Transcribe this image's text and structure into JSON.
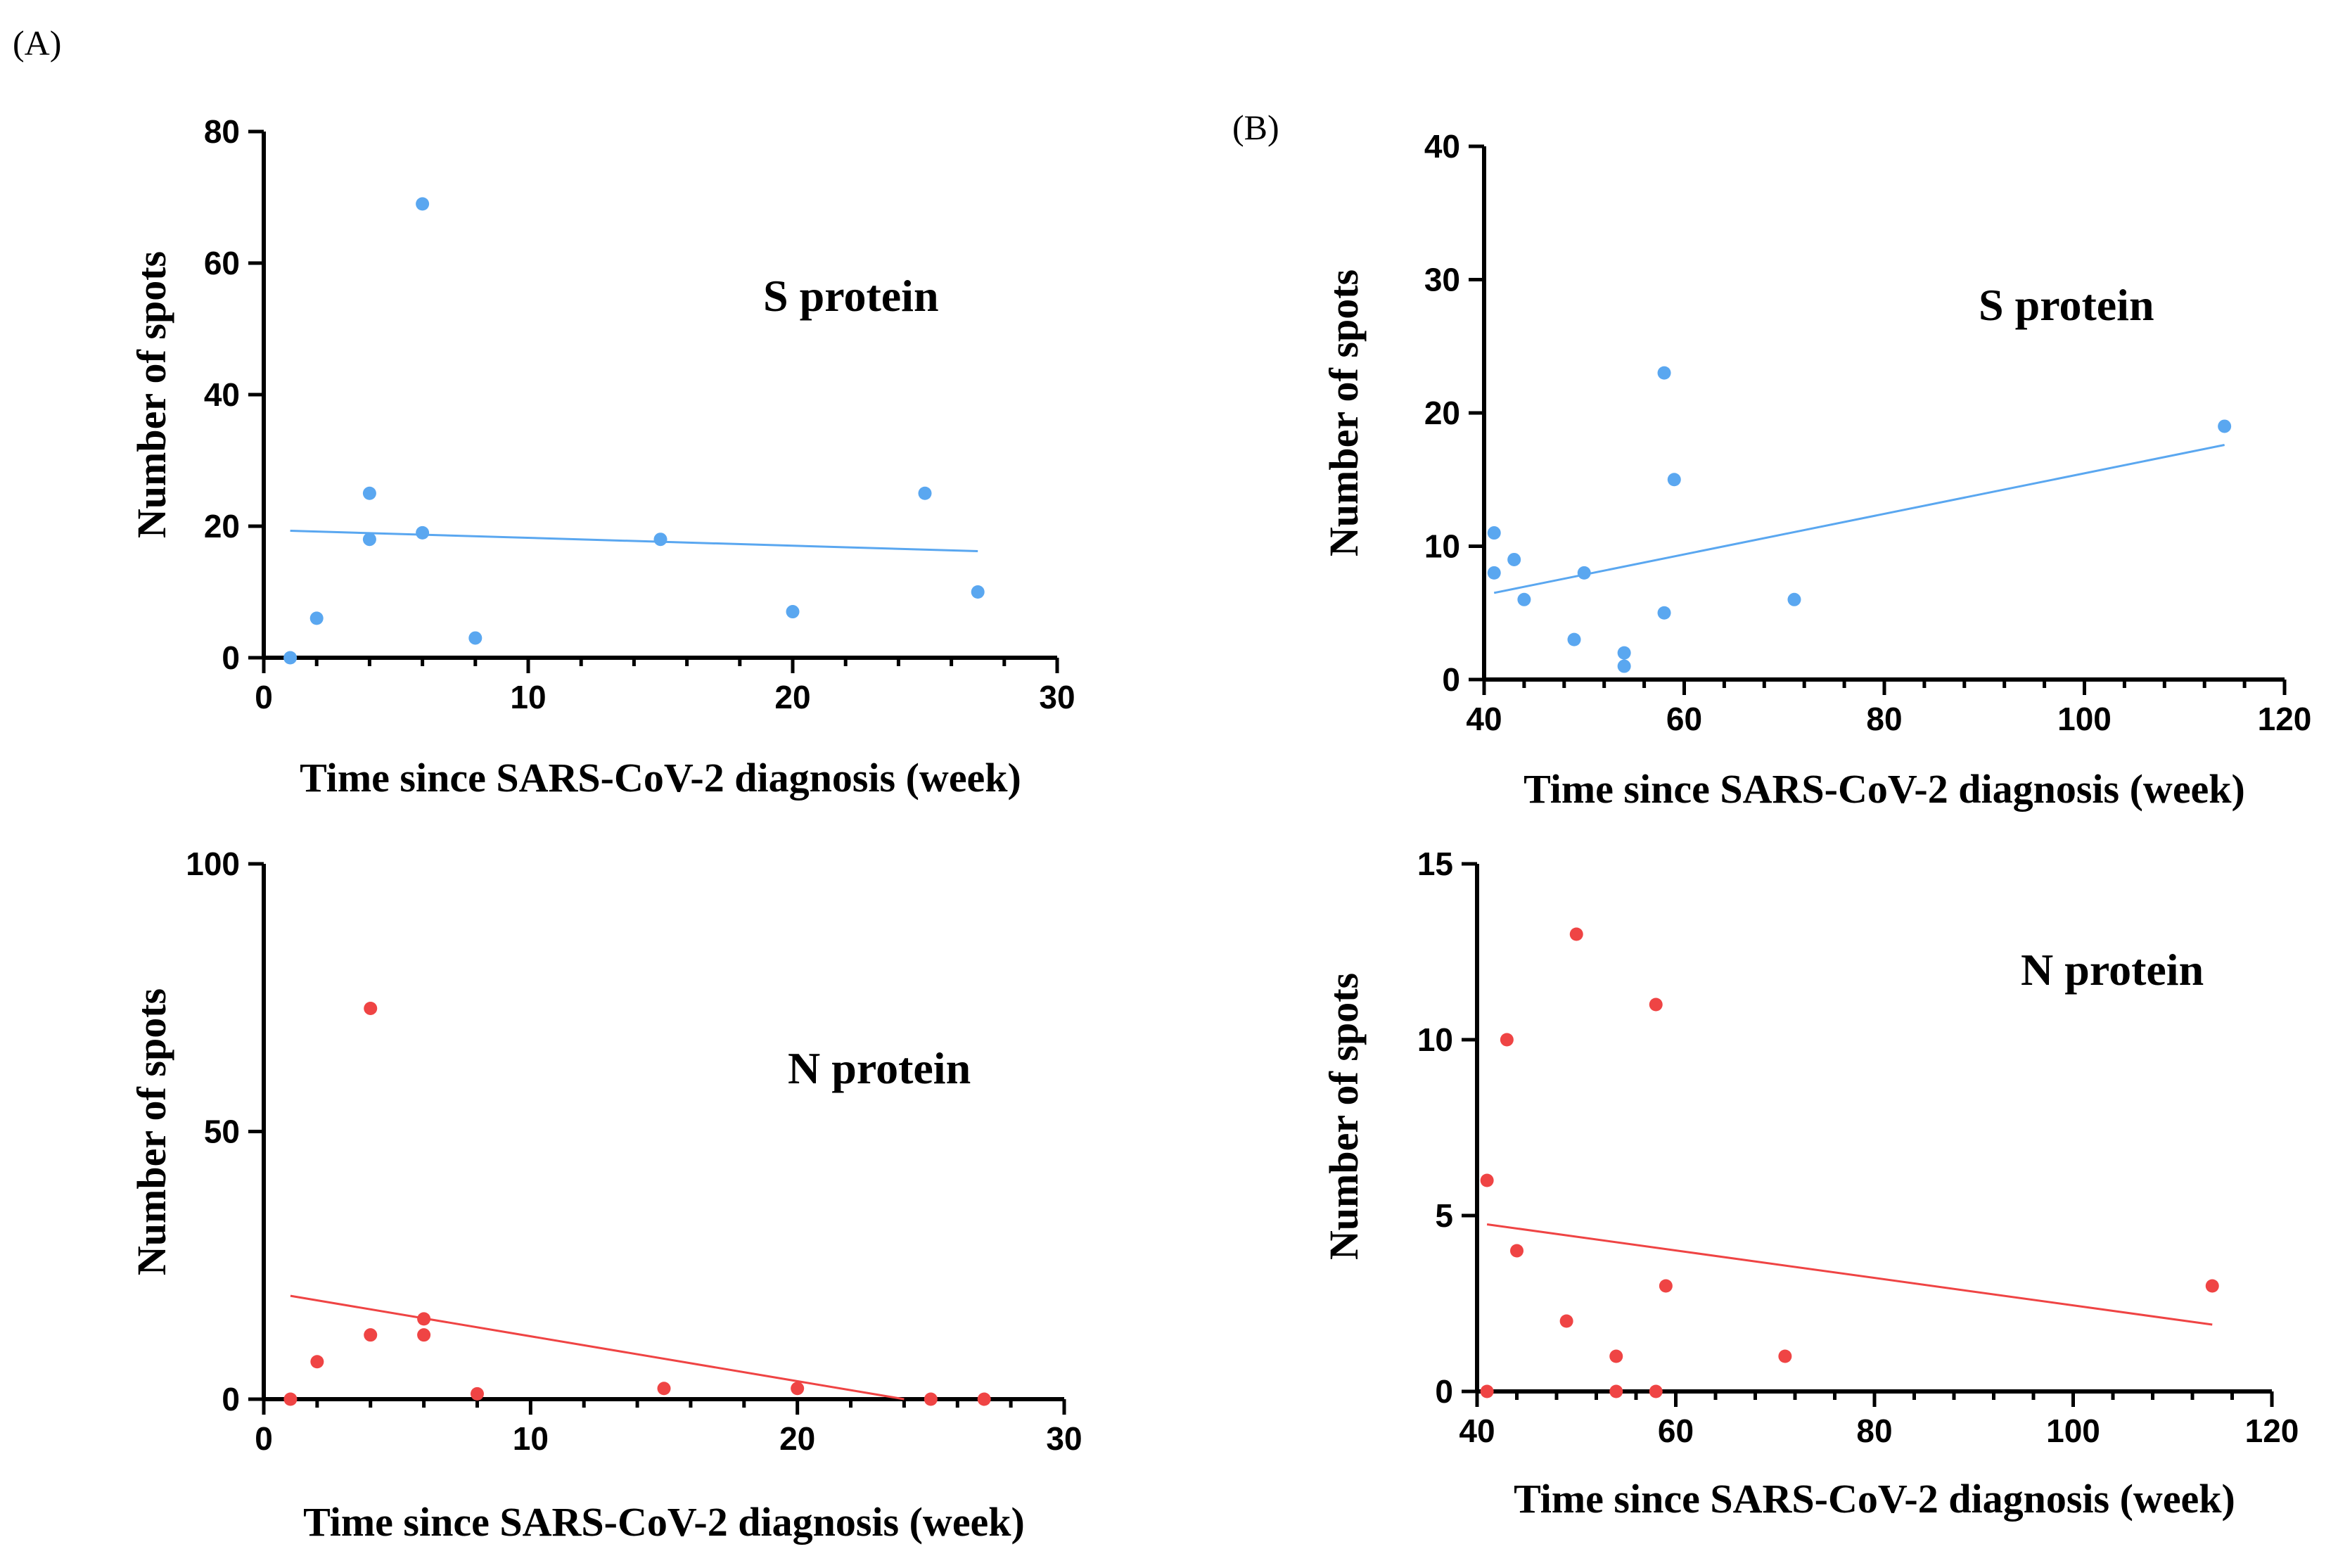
{
  "figure": {
    "panel_labels": [
      "(A)",
      "(B)"
    ]
  },
  "chart_data": [
    {
      "id": "A-S",
      "type": "scatter",
      "title": "S protein",
      "xlabel": "Time since SARS-CoV-2 diagnosis (week)",
      "ylabel": "Number of spots",
      "xlim": [
        0,
        30
      ],
      "ylim": [
        0,
        80
      ],
      "xticks": [
        0,
        10,
        20,
        30
      ],
      "yticks": [
        0,
        20,
        40,
        60,
        80
      ],
      "color": "#5aa7f0",
      "points": [
        [
          1,
          0
        ],
        [
          2,
          6
        ],
        [
          4,
          25
        ],
        [
          4,
          18
        ],
        [
          6,
          69
        ],
        [
          6,
          19
        ],
        [
          8,
          3
        ],
        [
          15,
          18
        ],
        [
          20,
          7
        ],
        [
          25,
          25
        ],
        [
          27,
          10
        ]
      ],
      "fit_line": [
        [
          1,
          19.3
        ],
        [
          27,
          16.2
        ]
      ]
    },
    {
      "id": "B-S",
      "type": "scatter",
      "title": "S protein",
      "xlabel": "Time since SARS-CoV-2 diagnosis (week)",
      "ylabel": "Number of spots",
      "xlim": [
        40,
        120
      ],
      "ylim": [
        0,
        40
      ],
      "xticks": [
        40,
        60,
        80,
        100,
        120
      ],
      "yticks": [
        0,
        10,
        20,
        30,
        40
      ],
      "color": "#5aa7f0",
      "points": [
        [
          41,
          11
        ],
        [
          41,
          8
        ],
        [
          43,
          9
        ],
        [
          44,
          6
        ],
        [
          49,
          3
        ],
        [
          50,
          8
        ],
        [
          54,
          2
        ],
        [
          54,
          1
        ],
        [
          58,
          23
        ],
        [
          58,
          5
        ],
        [
          59,
          15
        ],
        [
          71,
          6
        ],
        [
          114,
          19
        ]
      ],
      "fit_line": [
        [
          41,
          6.5
        ],
        [
          114,
          17.6
        ]
      ]
    },
    {
      "id": "A-N",
      "type": "scatter",
      "title": "N protein",
      "xlabel": "Time since SARS-CoV-2 diagnosis (week)",
      "ylabel": "Number of spots",
      "xlim": [
        0,
        30
      ],
      "ylim": [
        0,
        100
      ],
      "xticks": [
        0,
        10,
        20,
        30
      ],
      "yticks": [
        0,
        50,
        100
      ],
      "color": "#ef4444",
      "points": [
        [
          1,
          0
        ],
        [
          2,
          7
        ],
        [
          4,
          73
        ],
        [
          4,
          12
        ],
        [
          6,
          15
        ],
        [
          6,
          12
        ],
        [
          8,
          1
        ],
        [
          15,
          2
        ],
        [
          20,
          2
        ],
        [
          25,
          0
        ],
        [
          27,
          0
        ]
      ],
      "fit_line": [
        [
          1,
          19.3
        ],
        [
          24,
          0
        ]
      ]
    },
    {
      "id": "B-N",
      "type": "scatter",
      "title": "N protein",
      "xlabel": "Time since SARS-CoV-2 diagnosis (week)",
      "ylabel": "Number of spots",
      "xlim": [
        40,
        120
      ],
      "ylim": [
        0,
        15
      ],
      "xticks": [
        40,
        60,
        80,
        100,
        120
      ],
      "yticks": [
        0,
        5,
        10,
        15
      ],
      "color": "#ef4444",
      "points": [
        [
          41,
          6
        ],
        [
          41,
          0
        ],
        [
          43,
          10
        ],
        [
          44,
          4
        ],
        [
          49,
          2
        ],
        [
          50,
          13
        ],
        [
          54,
          1
        ],
        [
          54,
          0
        ],
        [
          58,
          11
        ],
        [
          58,
          0
        ],
        [
          59,
          3
        ],
        [
          71,
          1
        ],
        [
          114,
          3
        ]
      ],
      "fit_line": [
        [
          41,
          4.75
        ],
        [
          114,
          1.9
        ]
      ]
    }
  ]
}
